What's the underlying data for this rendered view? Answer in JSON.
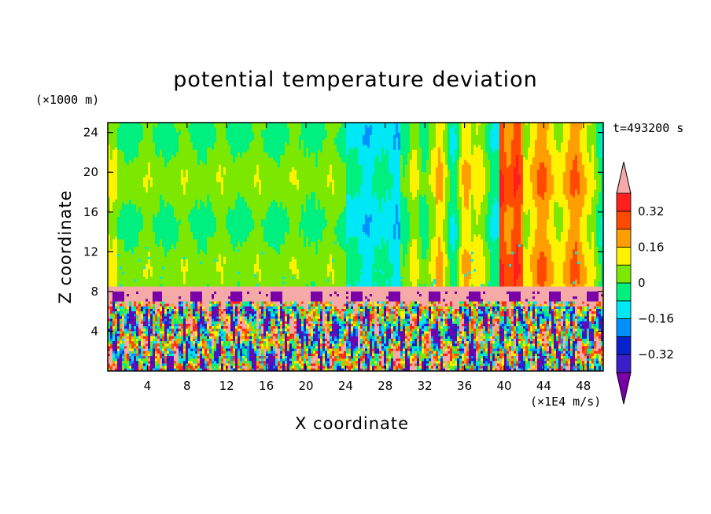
{
  "chart_data": {
    "type": "heatmap",
    "title": "potential temperature deviation",
    "xlabel": "X coordinate",
    "ylabel": "Z coordinate",
    "x_unit": "(×1E4 m/s)",
    "y_unit": "(×1000 m)",
    "time_label": "t=493200 s",
    "xlim": [
      0,
      50
    ],
    "ylim": [
      0,
      25
    ],
    "x_ticks": [
      4,
      8,
      12,
      16,
      20,
      24,
      28,
      32,
      36,
      40,
      44,
      48
    ],
    "y_ticks": [
      4,
      8,
      12,
      16,
      20,
      24
    ],
    "colorbar": {
      "levels": [
        -0.4,
        -0.32,
        -0.24,
        -0.16,
        -0.08,
        0,
        0.08,
        0.16,
        0.24,
        0.32,
        0.4
      ],
      "tick_labels": [
        "0.32",
        "0.16",
        "0",
        "−0.16",
        "−0.32"
      ],
      "tick_values": [
        0.32,
        0.16,
        0,
        -0.16,
        -0.32
      ],
      "colors": [
        "#7a00a8",
        "#3b1ec8",
        "#0a22cc",
        "#0090ff",
        "#00e8f5",
        "#00f080",
        "#7ce800",
        "#fff200",
        "#ff9e00",
        "#ff4a00",
        "#ff1f1f",
        "#f5aaa8"
      ],
      "extend": "both"
    },
    "description_layers": {
      "upper_field_value": 0.02,
      "lower_turbulent_layer_top": 7,
      "band_layer": [
        7,
        8.5
      ],
      "band_value": 0.45
    }
  }
}
